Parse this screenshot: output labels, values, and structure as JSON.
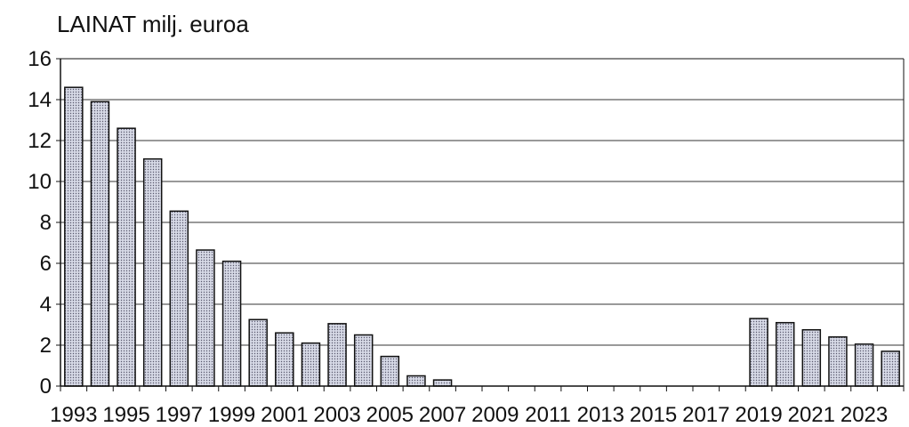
{
  "chart_data": {
    "type": "bar",
    "title": "LAINAT milj. euroa",
    "xlabel": "",
    "ylabel": "",
    "ylim": [
      0,
      16
    ],
    "yticks": [
      "0",
      "2",
      "4",
      "6",
      "8",
      "10",
      "12",
      "14",
      "16"
    ],
    "grid": true,
    "legend": "none",
    "categories": [
      "1993",
      "1994",
      "1995",
      "1996",
      "1997",
      "1998",
      "1999",
      "2000",
      "2001",
      "2002",
      "2003",
      "2004",
      "2005",
      "2006",
      "2007",
      "2008",
      "2009",
      "2010",
      "2011",
      "2012",
      "2013",
      "2014",
      "2015",
      "2016",
      "2017",
      "2018",
      "2019",
      "2020",
      "2021",
      "2022",
      "2023",
      "2024"
    ],
    "xtick_labels": [
      "1993",
      "1995",
      "1997",
      "1999",
      "2001",
      "2003",
      "2005",
      "2007",
      "2009",
      "2011",
      "2013",
      "2015",
      "2017",
      "2019",
      "2021",
      "2023"
    ],
    "values": [
      14.6,
      13.9,
      12.6,
      11.1,
      8.55,
      6.65,
      6.1,
      3.25,
      2.6,
      2.1,
      3.05,
      2.5,
      1.45,
      0.5,
      0.3,
      0,
      0,
      0,
      0,
      0,
      0,
      0,
      0,
      0,
      0,
      0,
      3.3,
      3.1,
      2.75,
      2.4,
      2.05,
      1.7
    ],
    "colors": {
      "bar_fill": "#d6d9e6",
      "bar_dot": "#5a5a6e",
      "bar_stroke": "#111111",
      "grid": "#333333",
      "axis": "#111111"
    }
  }
}
